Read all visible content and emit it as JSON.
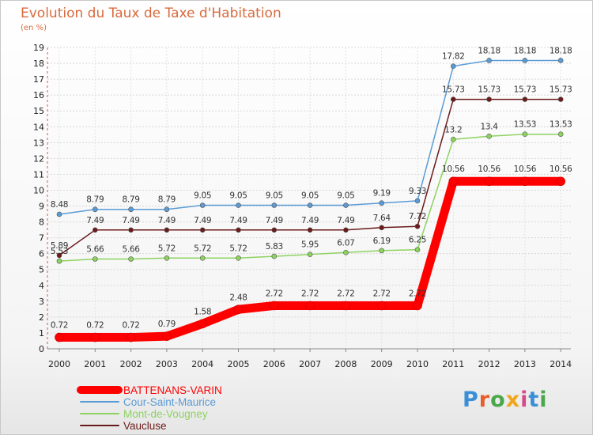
{
  "header": {
    "title": "Evolution du Taux de Taxe d'Habitation",
    "unit": "(en %)"
  },
  "logo": {
    "text": "Proxiti",
    "colors": [
      "#3a8fd6",
      "#e85d2a",
      "#4aa84a",
      "#f2a51b",
      "#d64a8a",
      "#3a8fd6",
      "#4aa84a"
    ]
  },
  "chart_data": {
    "type": "line",
    "title": "Evolution du Taux de Taxe d'Habitation",
    "ylabel": "(en %)",
    "xlabel": "",
    "ylim": [
      0,
      19
    ],
    "yticks": [
      0,
      1,
      2,
      3,
      4,
      5,
      6,
      7,
      8,
      9,
      10,
      11,
      12,
      13,
      14,
      15,
      16,
      17,
      18,
      19
    ],
    "grid": true,
    "legend_position": "bottom-left",
    "x": [
      "2000",
      "2001",
      "2002",
      "2003",
      "2004",
      "2005",
      "2006",
      "2007",
      "2008",
      "2009",
      "2010",
      "2011",
      "2012",
      "2013",
      "2014"
    ],
    "series": [
      {
        "name": "Cour-Saint-Maurice",
        "color": "#5b9bd5",
        "line_style": "thin",
        "values": [
          8.48,
          8.79,
          8.79,
          8.79,
          9.05,
          9.05,
          9.05,
          9.05,
          9.05,
          9.19,
          9.33,
          17.82,
          18.18,
          18.18,
          18.18
        ],
        "labels": [
          "8.48",
          "8.79",
          "8.79",
          "8.79",
          "9.05",
          "9.05",
          "9.05",
          "9.05",
          "9.05",
          "9.19",
          "9.33",
          "17.82",
          "18.18",
          "18.18",
          "18.18"
        ]
      },
      {
        "name": "Vaucluse",
        "color": "#6b1a1a",
        "line_style": "thin",
        "values": [
          5.89,
          7.49,
          7.49,
          7.49,
          7.49,
          7.49,
          7.49,
          7.49,
          7.49,
          7.64,
          7.72,
          15.73,
          15.73,
          15.73,
          15.73
        ],
        "labels": [
          "5.89",
          "7.49",
          "7.49",
          "7.49",
          "7.49",
          "7.49",
          "7.49",
          "7.49",
          "7.49",
          "7.64",
          "7.72",
          "15.73",
          "15.73",
          "15.73",
          "15.73"
        ]
      },
      {
        "name": "Mont-de-Vougney",
        "color": "#8dd35f",
        "line_style": "thin",
        "values": [
          5.53,
          5.66,
          5.66,
          5.72,
          5.72,
          5.72,
          5.83,
          5.95,
          6.07,
          6.19,
          6.25,
          13.2,
          13.4,
          13.53,
          13.53
        ],
        "labels": [
          "5.53",
          "5.66",
          "5.66",
          "5.72",
          "5.72",
          "5.72",
          "5.83",
          "5.95",
          "6.07",
          "6.19",
          "6.25",
          "13.2",
          "13.4",
          "13.53",
          "13.53"
        ]
      },
      {
        "name": "BATTENANS-VARIN",
        "color": "#ff0000",
        "line_style": "thick",
        "values": [
          0.72,
          0.72,
          0.72,
          0.79,
          1.58,
          2.48,
          2.72,
          2.72,
          2.72,
          2.72,
          2.72,
          10.56,
          10.56,
          10.56,
          10.56
        ],
        "labels": [
          "0.72",
          "0.72",
          "0.72",
          "0.79",
          "1.58",
          "2.48",
          "2.72",
          "2.72",
          "2.72",
          "2.72",
          "2.72",
          "10.56",
          "10.56",
          "10.56",
          "10.56"
        ]
      }
    ],
    "legend_order": [
      "BATTENANS-VARIN",
      "Cour-Saint-Maurice",
      "Mont-de-Vougney",
      "Vaucluse"
    ]
  }
}
